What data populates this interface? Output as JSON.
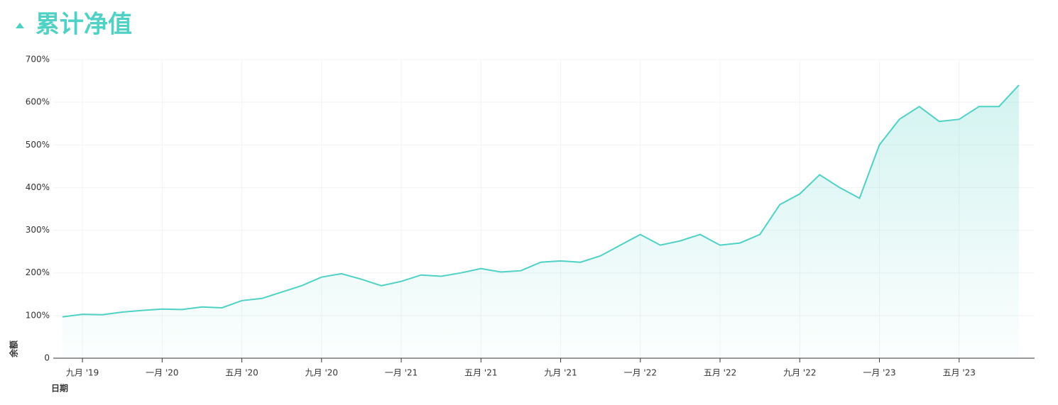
{
  "chart_data": {
    "type": "line",
    "title": "累计净值",
    "x_label": "日期",
    "y_label": "余额",
    "x": [
      "2019-08",
      "2019-09",
      "2019-10",
      "2019-11",
      "2019-12",
      "2020-01",
      "2020-02",
      "2020-03",
      "2020-04",
      "2020-05",
      "2020-06",
      "2020-07",
      "2020-08",
      "2020-09",
      "2020-10",
      "2020-11",
      "2020-12",
      "2021-01",
      "2021-02",
      "2021-03",
      "2021-04",
      "2021-05",
      "2021-06",
      "2021-07",
      "2021-08",
      "2021-09",
      "2021-10",
      "2021-11",
      "2021-12",
      "2022-01",
      "2022-02",
      "2022-03",
      "2022-04",
      "2022-05",
      "2022-06",
      "2022-07",
      "2022-08",
      "2022-09",
      "2022-10",
      "2022-11",
      "2022-12",
      "2023-01",
      "2023-02",
      "2023-03",
      "2023-04",
      "2023-05",
      "2023-06",
      "2023-07",
      "2023-08"
    ],
    "series": [
      {
        "name": "累计净值",
        "color": "#4fd1c5",
        "values": [
          97,
          103,
          102,
          108,
          112,
          115,
          114,
          120,
          118,
          135,
          140,
          155,
          170,
          190,
          198,
          185,
          170,
          180,
          195,
          192,
          200,
          210,
          202,
          205,
          225,
          228,
          225,
          240,
          265,
          290,
          265,
          275,
          290,
          265,
          270,
          290,
          360,
          385,
          430,
          400,
          375,
          500,
          560,
          590,
          555,
          560,
          590,
          590,
          640
        ]
      }
    ],
    "xlim": [
      "2019-07",
      "2023-09"
    ],
    "xticks": [
      {
        "value": "2019-09",
        "label": "九月 '19"
      },
      {
        "value": "2020-01",
        "label": "一月 '20"
      },
      {
        "value": "2020-05",
        "label": "五月 '20"
      },
      {
        "value": "2020-09",
        "label": "九月 '20"
      },
      {
        "value": "2021-01",
        "label": "一月 '21"
      },
      {
        "value": "2021-05",
        "label": "五月 '21"
      },
      {
        "value": "2021-09",
        "label": "九月 '21"
      },
      {
        "value": "2022-01",
        "label": "一月 '22"
      },
      {
        "value": "2022-05",
        "label": "五月 '22"
      },
      {
        "value": "2022-09",
        "label": "九月 '22"
      },
      {
        "value": "2023-01",
        "label": "一月 '23"
      },
      {
        "value": "2023-05",
        "label": "五月 '23"
      }
    ],
    "ylim": [
      0,
      700
    ],
    "yticks": [
      0,
      {
        "value": 100,
        "label": "100%"
      },
      {
        "value": 200,
        "label": "200%"
      },
      {
        "value": 300,
        "label": "300%"
      },
      {
        "value": 400,
        "label": "400%"
      },
      {
        "value": 500,
        "label": "500%"
      },
      {
        "value": 600,
        "label": "600%"
      },
      {
        "value": 700,
        "label": "700%"
      }
    ],
    "grid": true
  }
}
